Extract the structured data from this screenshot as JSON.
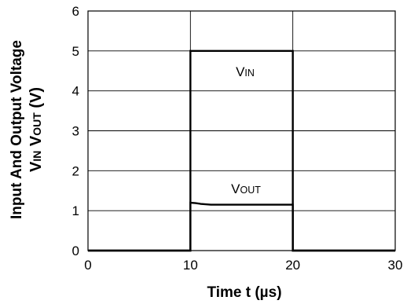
{
  "chart_data": {
    "type": "line",
    "xlabel": "Time t (µs)",
    "ylabel_line1": "Input And Output Voltage",
    "ylabel_line2": "VIN VOUT (V)",
    "xlim": [
      0,
      30
    ],
    "ylim": [
      0,
      6
    ],
    "x_ticks": [
      0,
      10,
      20,
      30
    ],
    "y_ticks": [
      0,
      1,
      2,
      3,
      4,
      5,
      6
    ],
    "grid": true,
    "series": [
      {
        "name": "VIN",
        "x": [
          0,
          10,
          10,
          20,
          20,
          30
        ],
        "y": [
          0,
          0,
          5,
          5,
          0,
          0
        ]
      },
      {
        "name": "VOUT",
        "x": [
          0,
          10,
          10,
          10.5,
          11,
          11.5,
          12,
          20,
          20,
          30
        ],
        "y": [
          0,
          0,
          1.2,
          1.19,
          1.17,
          1.16,
          1.15,
          1.15,
          0,
          0
        ]
      }
    ]
  }
}
